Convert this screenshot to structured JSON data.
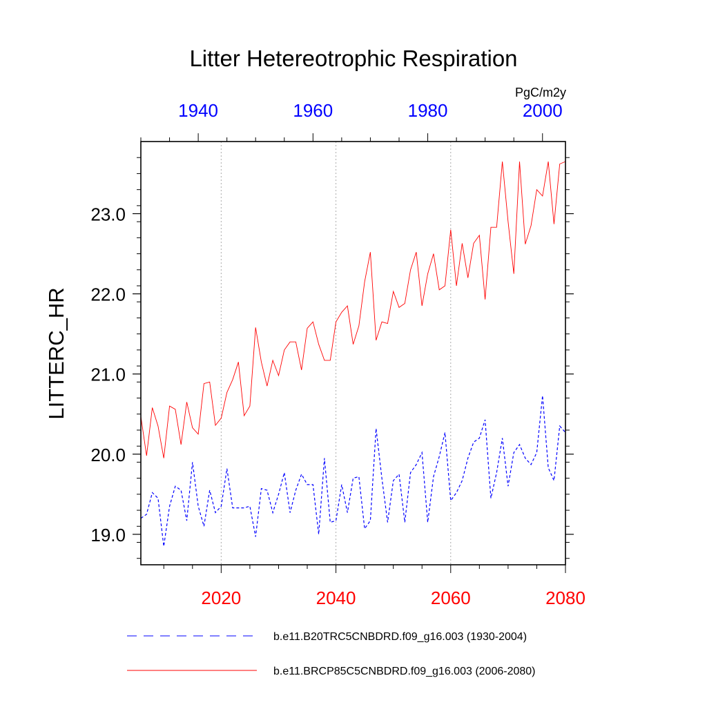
{
  "chart_data": {
    "type": "line",
    "title": "Litter Hetereotrophic Respiration",
    "ylabel": "LITTERC_HR",
    "units": "PgC/m2y",
    "ylim": [
      18.62,
      23.9
    ],
    "yticks": [
      19.0,
      20.0,
      21.0,
      22.0,
      23.0
    ],
    "ytick_labels": [
      "19.0",
      "20.0",
      "21.0",
      "22.0",
      "23.0"
    ],
    "x_bottom": {
      "range": [
        2006,
        2080
      ],
      "ticks": [
        2020,
        2040,
        2060,
        2080
      ],
      "tick_labels": [
        "2020",
        "2040",
        "2060",
        "2080"
      ],
      "color": "#ff0000"
    },
    "x_top": {
      "range": [
        1930,
        2004
      ],
      "ticks": [
        1940,
        1960,
        1980,
        2000
      ],
      "tick_labels": [
        "1940",
        "1960",
        "1980",
        "2000"
      ],
      "color": "#0000ff"
    },
    "gridlines_x": [
      2020,
      2040,
      2060
    ],
    "series": [
      {
        "name": "b.e11.B20TRC5CNBDRD.f09_g16.003 (1930-2004)",
        "color": "#0000ff",
        "dash": "dashed",
        "axis": "top",
        "x_start": 1930,
        "values": [
          19.2,
          19.25,
          19.52,
          19.45,
          18.85,
          19.35,
          19.6,
          19.55,
          19.17,
          19.9,
          19.35,
          19.1,
          19.55,
          19.27,
          19.35,
          19.82,
          19.33,
          19.33,
          19.33,
          19.35,
          18.97,
          19.57,
          19.55,
          19.27,
          19.5,
          19.77,
          19.27,
          19.55,
          19.75,
          19.62,
          19.62,
          19.0,
          19.95,
          19.15,
          19.17,
          19.62,
          19.27,
          19.7,
          19.72,
          19.07,
          19.17,
          20.32,
          19.7,
          19.15,
          19.67,
          19.75,
          19.15,
          19.77,
          19.87,
          20.02,
          19.15,
          19.72,
          19.97,
          20.27,
          19.42,
          19.52,
          19.67,
          19.95,
          20.15,
          20.2,
          20.43,
          19.45,
          19.77,
          20.2,
          19.6,
          20.02,
          20.12,
          19.95,
          19.87,
          20.02,
          20.73,
          19.83,
          19.67,
          20.35,
          20.27
        ]
      },
      {
        "name": "b.e11.BRCP85C5CNBDRD.f09_g16.003 (2006-2080)",
        "color": "#ff0000",
        "dash": "solid",
        "axis": "bottom",
        "x_start": 2006,
        "values": [
          20.47,
          19.98,
          20.58,
          20.35,
          19.95,
          20.6,
          20.56,
          20.12,
          20.65,
          20.33,
          20.25,
          20.88,
          20.9,
          20.36,
          20.45,
          20.77,
          20.93,
          21.15,
          20.48,
          20.6,
          21.58,
          21.15,
          20.85,
          21.17,
          20.98,
          21.3,
          21.4,
          21.4,
          21.05,
          21.57,
          21.65,
          21.37,
          21.17,
          21.17,
          21.65,
          21.77,
          21.85,
          21.37,
          21.6,
          22.15,
          22.52,
          21.42,
          21.65,
          21.63,
          22.03,
          21.83,
          21.88,
          22.3,
          22.52,
          21.85,
          22.25,
          22.5,
          22.05,
          22.1,
          22.8,
          22.1,
          22.63,
          22.2,
          22.63,
          22.73,
          21.93,
          22.83,
          22.83,
          23.65,
          22.9,
          22.25,
          23.65,
          22.62,
          22.85,
          23.3,
          23.22,
          23.65,
          22.87,
          23.62,
          23.65
        ]
      }
    ]
  }
}
